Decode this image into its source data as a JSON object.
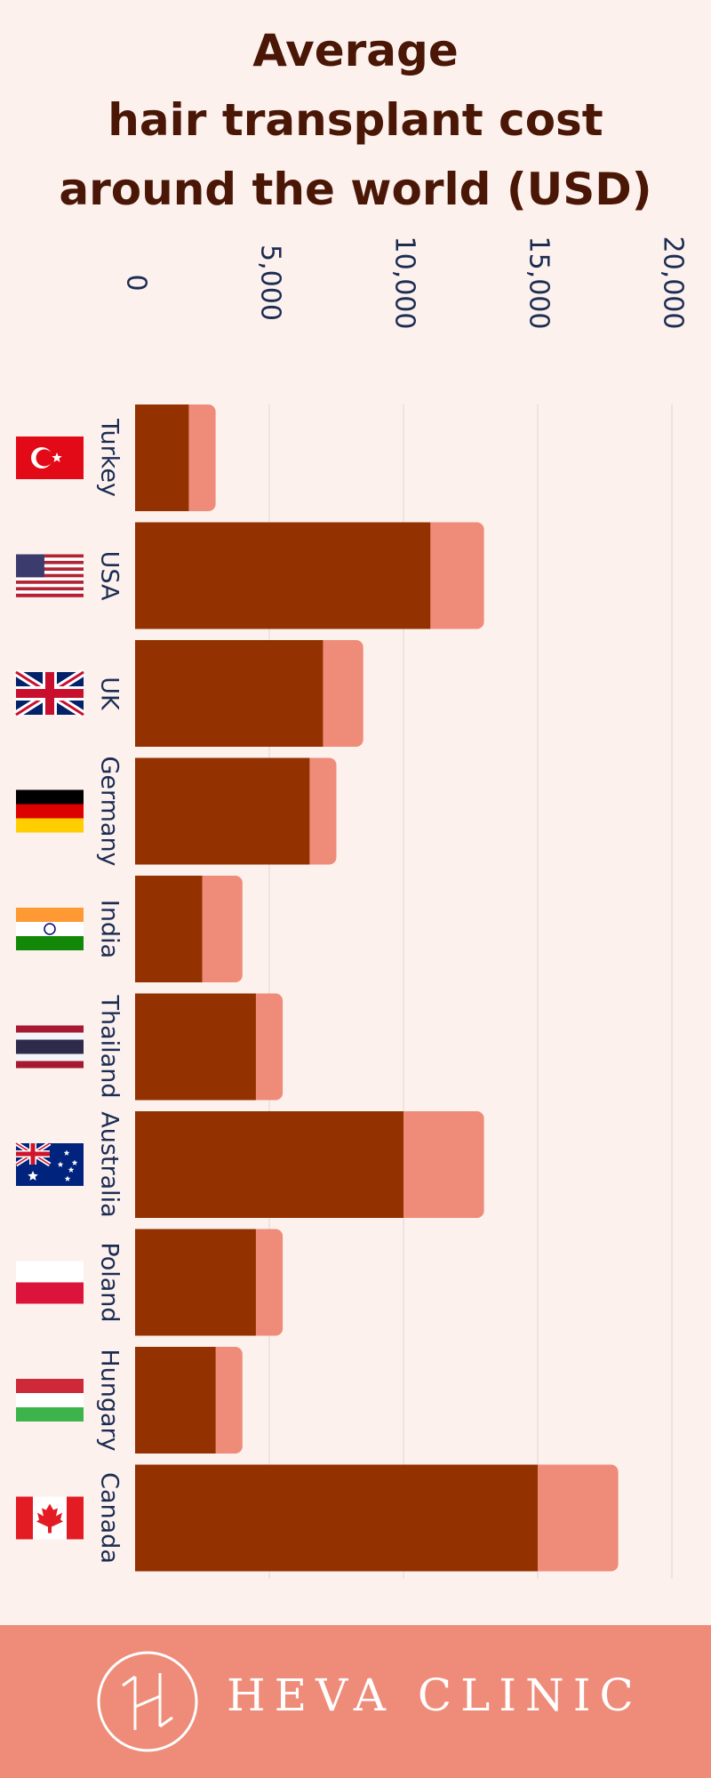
{
  "title_lines": [
    "Average",
    "hair transplant cost",
    "around the world (USD)"
  ],
  "brand": "HEVA CLINIC",
  "colors": {
    "background": "#fdf1ee",
    "bar_min": "#933200",
    "bar_max": "#ee8c79",
    "title": "#4a1706",
    "axis_text": "#1c2d52",
    "gridline": "#dbd6d4",
    "footer": "#ee8c79"
  },
  "flags": [
    "turkey-flag-icon",
    "usa-flag-icon",
    "uk-flag-icon",
    "germany-flag-icon",
    "india-flag-icon",
    "thailand-flag-icon",
    "australia-flag-icon",
    "poland-flag-icon",
    "hungary-flag-icon",
    "canada-flag-icon"
  ],
  "chart_data": {
    "type": "bar",
    "orientation": "horizontal",
    "stacked_range": true,
    "title": "Average hair transplant cost around the world (USD)",
    "categories": [
      "Turkey",
      "USA",
      "UK",
      "Germany",
      "India",
      "Thailand",
      "Australia",
      "Poland",
      "Hungary",
      "Canada"
    ],
    "series": [
      {
        "values": [
          2000,
          11000,
          7000,
          6500,
          2500,
          4500,
          10000,
          4500,
          3000,
          15000
        ]
      },
      {
        "values": [
          3000,
          13000,
          8500,
          7500,
          4000,
          5500,
          13000,
          5500,
          4000,
          18000
        ]
      }
    ],
    "xlim": [
      0,
      20000
    ],
    "ticks": [
      0,
      5000,
      10000,
      15000,
      20000
    ],
    "tick_labels": [
      "0",
      "5,000",
      "10,000",
      "15,000",
      "20,000"
    ],
    "grid": true
  }
}
